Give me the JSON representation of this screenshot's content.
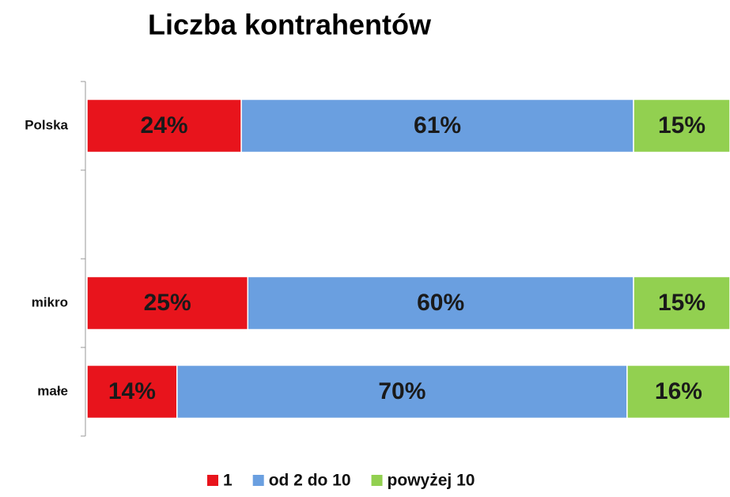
{
  "chart_data": {
    "type": "stacked-bar-horizontal",
    "title": "Liczba kontrahentów",
    "categories": [
      "Polska",
      null,
      "mikro",
      "małe"
    ],
    "series": [
      {
        "name": "1",
        "color": "#e8141c",
        "values": [
          24,
          null,
          25,
          14
        ],
        "value_labels": [
          "24%",
          null,
          "25%",
          "14%"
        ]
      },
      {
        "name": "od 2 do 10",
        "color": "#6a9fe0",
        "values": [
          61,
          null,
          60,
          70
        ],
        "value_labels": [
          "61%",
          null,
          "60%",
          "70%"
        ]
      },
      {
        "name": "powyżej 10",
        "color": "#92d050",
        "values": [
          15,
          null,
          15,
          16
        ],
        "value_labels": [
          "15%",
          null,
          "15%",
          "16%"
        ]
      }
    ],
    "legend": "bottom"
  }
}
